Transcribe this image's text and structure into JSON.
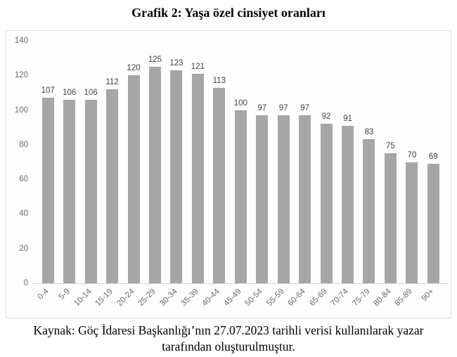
{
  "title": "Grafik 2: Yaşa özel cinsiyet oranları",
  "source": {
    "line1": "Kaynak: Göç İdaresi Başkanlığı’nın 27.07.2023 tarihli verisi kullanılarak yazar",
    "line2": "tarafından oluşturulmuştur."
  },
  "colors": {
    "bar": "#a6a6a6",
    "axis_text": "#6a6a6a",
    "value_text": "#3f3f3f",
    "chart_border": "#d9d9d9",
    "baseline": "#d2d2d2"
  },
  "chart_data": {
    "type": "bar",
    "title": "Grafik 2: Yaşa özel cinsiyet oranları",
    "categories": [
      "0-4",
      "5-9",
      "10-14",
      "15-19",
      "20-24",
      "25-29",
      "30-34",
      "35-39",
      "40-44",
      "45-49",
      "50-54",
      "55-59",
      "60-64",
      "65-69",
      "70-74",
      "75-79",
      "80-84",
      "85-89",
      "90+"
    ],
    "values": [
      107,
      106,
      106,
      112,
      120,
      125,
      123,
      121,
      113,
      100,
      97,
      97,
      97,
      92,
      91,
      83,
      75,
      70,
      69
    ],
    "xlabel": "",
    "ylabel": "",
    "ylim": [
      0,
      140
    ],
    "yticks": [
      0,
      20,
      40,
      60,
      80,
      100,
      120,
      140
    ],
    "grid": false,
    "legend": null,
    "data_labels": true,
    "bar_color": "#a6a6a6"
  }
}
